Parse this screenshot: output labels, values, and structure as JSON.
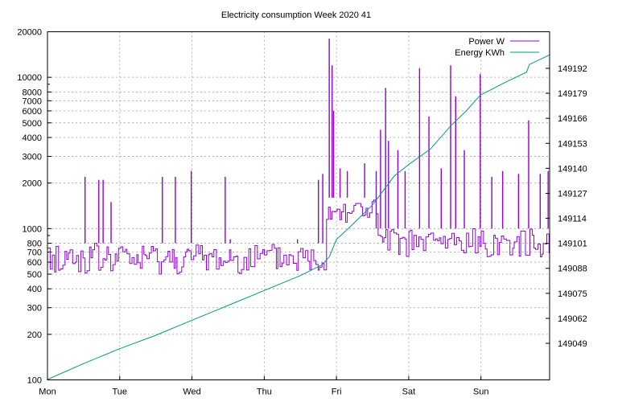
{
  "chart_data": {
    "type": "line",
    "title": "Electricity consumption Week 2020 41",
    "x_tick_labels": [
      "Mon",
      "Tue",
      "Wed",
      "Thu",
      "Fri",
      "Sat",
      "Sun"
    ],
    "y_left": {
      "scale": "log",
      "range": [
        100,
        20000
      ],
      "tick_values": [
        100,
        200,
        300,
        400,
        500,
        600,
        700,
        800,
        1000,
        2000,
        3000,
        4000,
        5000,
        6000,
        7000,
        8000,
        10000,
        20000
      ],
      "tick_labels": [
        "100",
        "200",
        "300",
        "400",
        "500",
        "600",
        "700",
        "800",
        "1000",
        "2000",
        "3000",
        "4000",
        "5000",
        "6000",
        "7000",
        "8000",
        "10000",
        "20000"
      ]
    },
    "y_right": {
      "scale": "linear",
      "range": [
        149030,
        149211
      ],
      "tick_values": [
        149049,
        149062,
        149075,
        149088,
        149101,
        149114,
        149127,
        149140,
        149153,
        149166,
        149179,
        149192
      ],
      "tick_labels": [
        "149049",
        "149062",
        "149075",
        "149088",
        "149101",
        "149114",
        "149127",
        "149140",
        "149153",
        "149166",
        "149179",
        "149192"
      ]
    },
    "x_range_days": [
      0,
      6.95
    ],
    "grid": true,
    "legend_position": "top-right",
    "series": [
      {
        "name": "Power W",
        "axis": "left",
        "color": "#9400d3",
        "baseline_levels": [
          {
            "from_day": 0.0,
            "to_day": 3.85,
            "low": 500,
            "high": 800
          },
          {
            "from_day": 3.85,
            "to_day": 4.55,
            "low": 1100,
            "high": 1600
          },
          {
            "from_day": 4.55,
            "to_day": 6.95,
            "low": 650,
            "high": 1000
          }
        ],
        "spikes": [
          {
            "day": 0.52,
            "value": 2200
          },
          {
            "day": 0.71,
            "value": 2100
          },
          {
            "day": 0.77,
            "value": 2100
          },
          {
            "day": 0.88,
            "value": 1500
          },
          {
            "day": 1.59,
            "value": 2200
          },
          {
            "day": 1.77,
            "value": 2200
          },
          {
            "day": 1.99,
            "value": 2400
          },
          {
            "day": 2.46,
            "value": 2200
          },
          {
            "day": 2.53,
            "value": 850
          },
          {
            "day": 3.46,
            "value": 850
          },
          {
            "day": 3.75,
            "value": 2100
          },
          {
            "day": 3.81,
            "value": 2300
          },
          {
            "day": 3.9,
            "value": 18000
          },
          {
            "day": 3.94,
            "value": 12000
          },
          {
            "day": 3.96,
            "value": 6000
          },
          {
            "day": 4.05,
            "value": 2500
          },
          {
            "day": 4.15,
            "value": 2400
          },
          {
            "day": 4.39,
            "value": 2700
          },
          {
            "day": 4.55,
            "value": 2400
          },
          {
            "day": 4.61,
            "value": 4500
          },
          {
            "day": 4.68,
            "value": 8500
          },
          {
            "day": 4.72,
            "value": 3800
          },
          {
            "day": 4.85,
            "value": 3300
          },
          {
            "day": 4.95,
            "value": 2400
          },
          {
            "day": 5.15,
            "value": 11500
          },
          {
            "day": 5.28,
            "value": 5500
          },
          {
            "day": 5.45,
            "value": 2500
          },
          {
            "day": 5.58,
            "value": 12000
          },
          {
            "day": 5.65,
            "value": 7500
          },
          {
            "day": 5.77,
            "value": 3300
          },
          {
            "day": 5.99,
            "value": 10500
          },
          {
            "day": 6.15,
            "value": 2200
          },
          {
            "day": 6.3,
            "value": 2400
          },
          {
            "day": 6.52,
            "value": 2300
          },
          {
            "day": 6.66,
            "value": 5200
          },
          {
            "day": 6.82,
            "value": 2300
          },
          {
            "day": 6.93,
            "value": 2400
          }
        ]
      },
      {
        "name": "Energy KWh",
        "axis": "right",
        "color": "#009e73",
        "points": [
          {
            "day": 0.0,
            "value": 149030.2
          },
          {
            "day": 0.5,
            "value": 149038.5
          },
          {
            "day": 1.0,
            "value": 149046.2
          },
          {
            "day": 1.5,
            "value": 149053.2
          },
          {
            "day": 2.0,
            "value": 149061.0
          },
          {
            "day": 2.5,
            "value": 149068.7
          },
          {
            "day": 3.0,
            "value": 149076.5
          },
          {
            "day": 3.5,
            "value": 149084.2
          },
          {
            "day": 3.8,
            "value": 149089.8
          },
          {
            "day": 3.9,
            "value": 149094.0
          },
          {
            "day": 4.0,
            "value": 149103.0
          },
          {
            "day": 4.2,
            "value": 149110.0
          },
          {
            "day": 4.5,
            "value": 149121.0
          },
          {
            "day": 4.8,
            "value": 149136.0
          },
          {
            "day": 5.0,
            "value": 149142.0
          },
          {
            "day": 5.3,
            "value": 149150.0
          },
          {
            "day": 5.58,
            "value": 149162.0
          },
          {
            "day": 5.8,
            "value": 149170.0
          },
          {
            "day": 5.99,
            "value": 149178.0
          },
          {
            "day": 6.3,
            "value": 149184.0
          },
          {
            "day": 6.63,
            "value": 149190.0
          },
          {
            "day": 6.67,
            "value": 149194.0
          },
          {
            "day": 6.95,
            "value": 149199.0
          }
        ]
      }
    ]
  }
}
